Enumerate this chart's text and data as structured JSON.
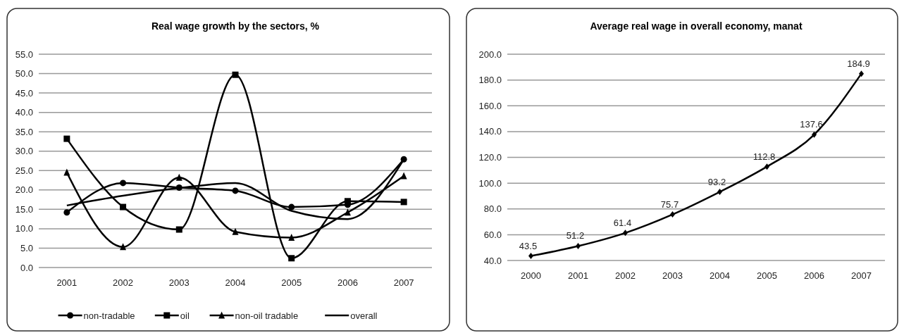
{
  "chart_data": [
    {
      "type": "line",
      "title": "Real wage growth by the sectors, %",
      "categories": [
        "2001",
        "2002",
        "2003",
        "2004",
        "2005",
        "2006",
        "2007"
      ],
      "series": [
        {
          "name": "non-tradable",
          "color": "#000000",
          "marker": "circle",
          "values": [
            14.2,
            21.8,
            20.6,
            19.8,
            15.6,
            16.2,
            27.9
          ]
        },
        {
          "name": "oil",
          "color": "#000000",
          "marker": "square",
          "values": [
            33.2,
            15.6,
            9.8,
            49.7,
            2.4,
            17.1,
            16.9
          ]
        },
        {
          "name": "non-oil tradable",
          "color": "#000000",
          "marker": "triangle",
          "values": [
            24.5,
            5.3,
            23.2,
            9.2,
            7.7,
            14.2,
            23.6
          ]
        },
        {
          "name": "overall",
          "color": "#000000",
          "marker": "none",
          "values": [
            16.0,
            18.5,
            20.5,
            21.8,
            14.6,
            12.5,
            27.9
          ]
        }
      ],
      "ylim": [
        0,
        55
      ],
      "yticks": [
        {
          "value": 0,
          "label": "0.0"
        },
        {
          "value": 5,
          "label": "5.0"
        },
        {
          "value": 10,
          "label": "10.0"
        },
        {
          "value": 15,
          "label": "15.0"
        },
        {
          "value": 20,
          "label": "20.0"
        },
        {
          "value": 25,
          "label": "25.0"
        },
        {
          "value": 30,
          "label": "30.0"
        },
        {
          "value": 35,
          "label": "35.0"
        },
        {
          "value": 40,
          "label": "40.0"
        },
        {
          "value": 45,
          "label": "45.0"
        },
        {
          "value": 50,
          "label": "50.0"
        },
        {
          "value": 55,
          "label": "55.0"
        }
      ],
      "grid": "y",
      "legend": "bottom"
    },
    {
      "type": "line",
      "title": "Average real wage in overall economy, manat",
      "categories": [
        "2000",
        "2001",
        "2002",
        "2003",
        "2004",
        "2005",
        "2006",
        "2007"
      ],
      "series": [
        {
          "color": "#000000",
          "marker": "diamond",
          "values": [
            43.5,
            51.2,
            61.4,
            75.7,
            93.2,
            112.8,
            137.6,
            184.9
          ]
        }
      ],
      "ylim": [
        40,
        200
      ],
      "yticks": [
        {
          "value": 40,
          "label": "40.0"
        },
        {
          "value": 60,
          "label": "60.0"
        },
        {
          "value": 80,
          "label": "80.0"
        },
        {
          "value": 100,
          "label": "100.0"
        },
        {
          "value": 120,
          "label": "120.0"
        },
        {
          "value": 140,
          "label": "140.0"
        },
        {
          "value": 160,
          "label": "160.0"
        },
        {
          "value": 180,
          "label": "180.0"
        },
        {
          "value": 200,
          "label": "200.0"
        }
      ],
      "grid": "y",
      "data_labels": true
    }
  ]
}
